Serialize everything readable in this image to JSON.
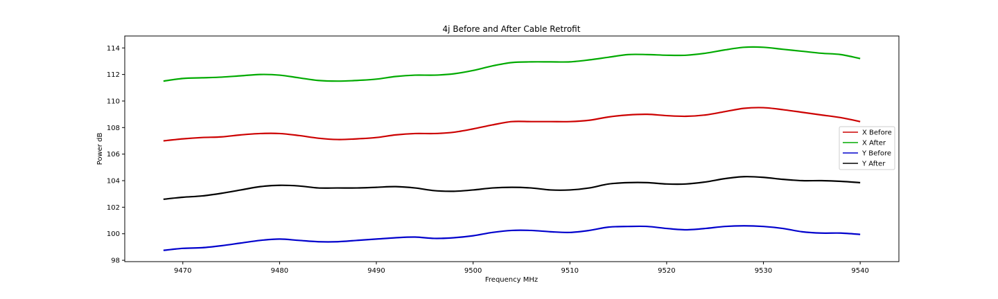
{
  "chart_data": {
    "type": "line",
    "title": "4j Before and After Cable Retrofit",
    "xlabel": "Frequency MHz",
    "ylabel": "Power dB",
    "xlim": [
      9464,
      9544
    ],
    "ylim": [
      97.9,
      114.9
    ],
    "xticks": [
      9470,
      9480,
      9490,
      9500,
      9510,
      9520,
      9530,
      9540
    ],
    "yticks": [
      98,
      100,
      102,
      104,
      106,
      108,
      110,
      112,
      114
    ],
    "grid": false,
    "legend_position": "center-right",
    "series": [
      {
        "name": "X Before",
        "color": "#cc0000",
        "x": [
          9468,
          9470,
          9472,
          9474,
          9476,
          9478,
          9480,
          9482,
          9484,
          9486,
          9488,
          9490,
          9492,
          9494,
          9496,
          9498,
          9500,
          9502,
          9504,
          9506,
          9508,
          9510,
          9512,
          9514,
          9516,
          9518,
          9520,
          9522,
          9524,
          9526,
          9528,
          9530,
          9532,
          9534,
          9536,
          9538,
          9540
        ],
        "y": [
          107.0,
          107.15,
          107.25,
          107.3,
          107.45,
          107.55,
          107.55,
          107.4,
          107.2,
          107.1,
          107.15,
          107.25,
          107.45,
          107.55,
          107.55,
          107.65,
          107.9,
          108.2,
          108.45,
          108.45,
          108.45,
          108.45,
          108.55,
          108.8,
          108.95,
          109.0,
          108.9,
          108.85,
          108.95,
          109.2,
          109.45,
          109.5,
          109.35,
          109.15,
          108.95,
          108.75,
          108.45
        ]
      },
      {
        "name": "X After",
        "color": "#00aa00",
        "x": [
          9468,
          9470,
          9472,
          9474,
          9476,
          9478,
          9480,
          9482,
          9484,
          9486,
          9488,
          9490,
          9492,
          9494,
          9496,
          9498,
          9500,
          9502,
          9504,
          9506,
          9508,
          9510,
          9512,
          9514,
          9516,
          9518,
          9520,
          9522,
          9524,
          9526,
          9528,
          9530,
          9532,
          9534,
          9536,
          9538,
          9540
        ],
        "y": [
          111.5,
          111.7,
          111.75,
          111.8,
          111.9,
          112.0,
          111.95,
          111.75,
          111.55,
          111.5,
          111.55,
          111.65,
          111.85,
          111.95,
          111.95,
          112.05,
          112.3,
          112.65,
          112.9,
          112.95,
          112.95,
          112.95,
          113.1,
          113.3,
          113.5,
          113.5,
          113.45,
          113.45,
          113.6,
          113.85,
          114.05,
          114.05,
          113.9,
          113.75,
          113.6,
          113.5,
          113.2
        ]
      },
      {
        "name": "Y Before",
        "color": "#0000cc",
        "x": [
          9468,
          9470,
          9472,
          9474,
          9476,
          9478,
          9480,
          9482,
          9484,
          9486,
          9488,
          9490,
          9492,
          9494,
          9496,
          9498,
          9500,
          9502,
          9504,
          9506,
          9508,
          9510,
          9512,
          9514,
          9516,
          9518,
          9520,
          9522,
          9524,
          9526,
          9528,
          9530,
          9532,
          9534,
          9536,
          9538,
          9540
        ],
        "y": [
          98.75,
          98.9,
          98.95,
          99.1,
          99.3,
          99.5,
          99.6,
          99.5,
          99.4,
          99.4,
          99.5,
          99.6,
          99.7,
          99.75,
          99.65,
          99.7,
          99.85,
          100.1,
          100.25,
          100.25,
          100.15,
          100.1,
          100.25,
          100.5,
          100.55,
          100.55,
          100.4,
          100.3,
          100.4,
          100.55,
          100.6,
          100.55,
          100.4,
          100.15,
          100.05,
          100.05,
          99.95
        ]
      },
      {
        "name": "Y After",
        "color": "#000000",
        "x": [
          9468,
          9470,
          9472,
          9474,
          9476,
          9478,
          9480,
          9482,
          9484,
          9486,
          9488,
          9490,
          9492,
          9494,
          9496,
          9498,
          9500,
          9502,
          9504,
          9506,
          9508,
          9510,
          9512,
          9514,
          9516,
          9518,
          9520,
          9522,
          9524,
          9526,
          9528,
          9530,
          9532,
          9534,
          9536,
          9538,
          9540
        ],
        "y": [
          102.6,
          102.75,
          102.85,
          103.05,
          103.3,
          103.55,
          103.65,
          103.6,
          103.45,
          103.45,
          103.45,
          103.5,
          103.55,
          103.45,
          103.25,
          103.2,
          103.3,
          103.45,
          103.5,
          103.45,
          103.3,
          103.3,
          103.45,
          103.75,
          103.85,
          103.85,
          103.75,
          103.75,
          103.9,
          104.15,
          104.3,
          104.25,
          104.1,
          104.0,
          104.0,
          103.95,
          103.85
        ]
      }
    ]
  }
}
